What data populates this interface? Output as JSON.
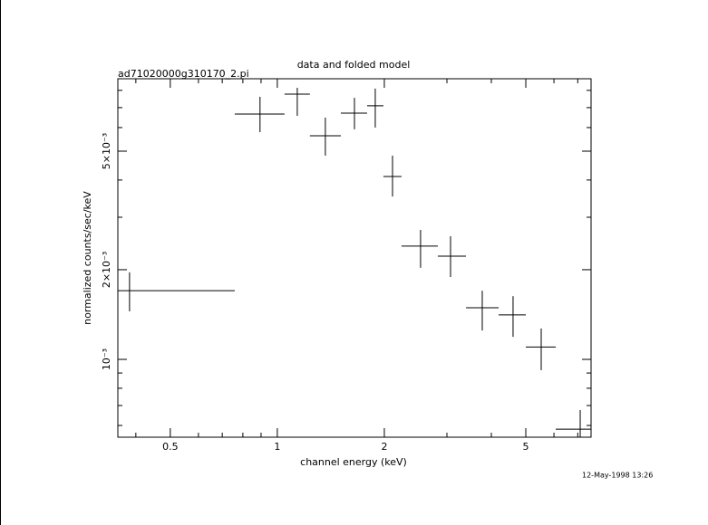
{
  "chart_data": {
    "type": "errorbar",
    "title": "data and folded model",
    "subtitle": "ad71020000g310170_2.pi",
    "x_label": "channel energy (keV)",
    "y_label": "normalized counts/sec/keV",
    "timestamp": "12-May-1998 13:26",
    "x_log": true,
    "y_log": true,
    "color": "#000000",
    "xlim": [
      0.356,
      7.63
    ],
    "ylim": [
      0.000548,
      0.00875
    ],
    "xticks": [
      0.5,
      1,
      2,
      5
    ],
    "xminorticks": [
      0.4,
      0.6,
      0.7,
      0.8,
      0.9,
      3,
      4,
      6,
      7
    ],
    "yticks": [
      {
        "value": 0.001,
        "label": "10⁻³"
      },
      {
        "value": 0.002,
        "label": "2×10⁻³"
      },
      {
        "value": 0.005,
        "label": "5×10⁻³"
      }
    ],
    "yminorticks": [
      0.0006,
      0.0007,
      0.0008,
      0.0009,
      0.003,
      0.004,
      0.006,
      0.007,
      0.008
    ],
    "x": [
      0.384,
      0.894,
      1.138,
      1.365,
      1.648,
      1.886,
      2.109,
      2.529,
      3.071,
      3.771,
      4.604,
      5.524,
      7.112
    ],
    "x_low": [
      0.356,
      0.759,
      1.048,
      1.235,
      1.509,
      1.789,
      1.988,
      2.236,
      2.828,
      3.394,
      4.193,
      5.0,
      6.07
    ],
    "x_high": [
      0.759,
      1.048,
      1.235,
      1.509,
      1.789,
      1.988,
      2.236,
      2.828,
      3.394,
      4.193,
      5.0,
      6.07,
      7.63
    ],
    "values": [
      0.0017,
      0.00666,
      0.00777,
      0.00563,
      0.00671,
      0.0071,
      0.00411,
      0.0024,
      0.00222,
      0.00149,
      0.00141,
      0.0011,
      0.000583
    ],
    "low": [
      0.00145,
      0.00579,
      0.00657,
      0.00483,
      0.00592,
      0.006,
      0.00352,
      0.00203,
      0.00189,
      0.00125,
      0.00119,
      0.00092,
      0.000548
    ],
    "high": [
      0.00196,
      0.00761,
      0.00816,
      0.00648,
      0.00755,
      0.00811,
      0.00483,
      0.00272,
      0.00259,
      0.0017,
      0.00163,
      0.00127,
      0.000676
    ]
  }
}
